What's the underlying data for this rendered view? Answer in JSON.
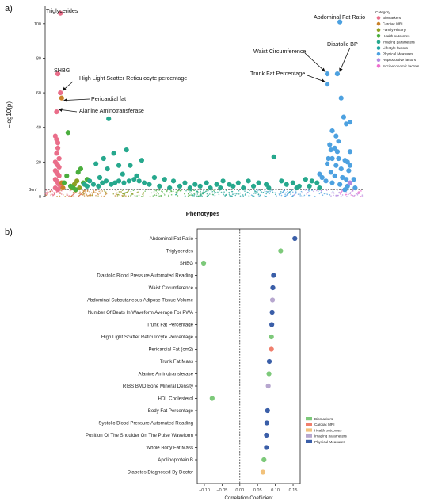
{
  "panels": {
    "a": "a)",
    "b": "b)"
  },
  "colors": {
    "Biomarkers": "#ea6e8a",
    "Cardiac MRI": "#c9822b",
    "Family History": "#8f9f23",
    "Health outcomes": "#4aae3d",
    "Imaging parameters": "#26a88d",
    "Lifestyle factors": "#1da3a0",
    "Physical Measures": "#4da1e0",
    "Reproductive factors": "#b38be0",
    "Socioeconomic factors": "#ee6fcf"
  },
  "chart_data": [
    {
      "type": "scatter",
      "title": "",
      "xlabel": "Phenotypes",
      "ylabel": "−log10(p)",
      "ylim": [
        0,
        110
      ],
      "yticks": [
        0,
        20,
        40,
        60,
        80,
        100
      ],
      "threshold_label": "Bonf",
      "threshold_value": 4,
      "legend": {
        "title": "Category",
        "items": [
          "Biomarkers",
          "Cardiac MRI",
          "Family History",
          "Health outcomes",
          "Imaging parameters",
          "Lifestyle factors",
          "Physical Measures",
          "Reproductive factors",
          "Socioeconomic factors"
        ],
        "placement": "top-right"
      },
      "annotations": [
        {
          "text": "Triglycerides",
          "x": 12,
          "y": 106
        },
        {
          "text": "SHBG",
          "x": 10,
          "y": 71
        },
        {
          "text": "High Light Scatter Reticulocyte percentage",
          "x": 12,
          "y": 60
        },
        {
          "text": "Pericardial fat",
          "x": 13,
          "y": 57
        },
        {
          "text": "Alanine Aminotransferase",
          "x": 9,
          "y": 49
        },
        {
          "text": "Abdominal Fat Ratio",
          "x": 232,
          "y": 101
        },
        {
          "text": "Waist Circumference",
          "x": 222,
          "y": 71
        },
        {
          "text": "Diastolic BP",
          "x": 230,
          "y": 71
        },
        {
          "text": "Trunk Fat Percentage",
          "x": 222,
          "y": 65
        }
      ],
      "series": [
        {
          "name": "Biomarkers",
          "points": [
            [
              12,
              106
            ],
            [
              10,
              71
            ],
            [
              12,
              60
            ],
            [
              9,
              49
            ],
            [
              8,
              35
            ],
            [
              9,
              33
            ],
            [
              10,
              31
            ],
            [
              10,
              28
            ],
            [
              9,
              25
            ],
            [
              11,
              22
            ],
            [
              8,
              20
            ],
            [
              9,
              19
            ],
            [
              10,
              18
            ],
            [
              11,
              17
            ],
            [
              8,
              15
            ],
            [
              9,
              14
            ],
            [
              10,
              13
            ],
            [
              11,
              12
            ],
            [
              8,
              10
            ],
            [
              9,
              9
            ],
            [
              10,
              8
            ],
            [
              11,
              7
            ],
            [
              12,
              6
            ],
            [
              8,
              5
            ],
            [
              10,
              4
            ]
          ]
        },
        {
          "name": "Cardiac MRI",
          "points": [
            [
              13,
              57
            ],
            [
              13,
              8
            ],
            [
              14,
              5
            ]
          ]
        },
        {
          "name": "Family History",
          "points": [
            [
              23,
              7
            ],
            [
              25,
              9
            ],
            [
              21,
              5
            ],
            [
              27,
              5
            ]
          ]
        },
        {
          "name": "Health outcomes",
          "points": [
            [
              18,
              37
            ],
            [
              17,
              12
            ],
            [
              15,
              8
            ],
            [
              26,
              14
            ],
            [
              28,
              16
            ],
            [
              20,
              6
            ],
            [
              30,
              8
            ],
            [
              22,
              5
            ],
            [
              33,
              10
            ],
            [
              24,
              4
            ]
          ]
        },
        {
          "name": "Imaging parameters",
          "points": [
            [
              50,
              45
            ],
            [
              64,
              27
            ],
            [
              54,
              25
            ],
            [
              46,
              22
            ],
            [
              76,
              21
            ],
            [
              40,
              19
            ],
            [
              58,
              18
            ],
            [
              67,
              18
            ],
            [
              49,
              16
            ],
            [
              61,
              13
            ],
            [
              72,
              12
            ],
            [
              43,
              11
            ],
            [
              86,
              11
            ],
            [
              94,
              10
            ],
            [
              101,
              9
            ],
            [
              110,
              8
            ],
            [
              118,
              7
            ],
            [
              127,
              8
            ],
            [
              135,
              7
            ],
            [
              140,
              9
            ],
            [
              145,
              7
            ],
            [
              152,
              8
            ],
            [
              160,
              9
            ],
            [
              168,
              8
            ],
            [
              174,
              7
            ],
            [
              180,
              23
            ],
            [
              186,
              9
            ],
            [
              190,
              7
            ],
            [
              195,
              8
            ],
            [
              200,
              6
            ],
            [
              205,
              10
            ],
            [
              210,
              9
            ],
            [
              214,
              8
            ],
            [
              216,
              5
            ],
            [
              208,
              6
            ],
            [
              198,
              5
            ],
            [
              176,
              5
            ],
            [
              164,
              6
            ],
            [
              156,
              5
            ],
            [
              148,
              6
            ],
            [
              138,
              5
            ],
            [
              130,
              5
            ],
            [
              122,
              6
            ],
            [
              114,
              5
            ],
            [
              106,
              6
            ],
            [
              98,
              5
            ],
            [
              90,
              6
            ],
            [
              82,
              7
            ],
            [
              78,
              8
            ],
            [
              74,
              9
            ],
            [
              70,
              10
            ],
            [
              66,
              9
            ],
            [
              62,
              8
            ],
            [
              58,
              9
            ],
            [
              55,
              8
            ],
            [
              52,
              7
            ],
            [
              48,
              9
            ],
            [
              45,
              8
            ],
            [
              42,
              6
            ],
            [
              38,
              7
            ],
            [
              35,
              9
            ],
            [
              33,
              6
            ],
            [
              31,
              7
            ]
          ]
        },
        {
          "name": "Physical Measures",
          "points": [
            [
              232,
              101
            ],
            [
              222,
              71
            ],
            [
              230,
              71
            ],
            [
              222,
              65
            ],
            [
              233,
              57
            ],
            [
              235,
              46
            ],
            [
              237,
              42
            ],
            [
              240,
              43
            ],
            [
              226,
              38
            ],
            [
              229,
              35
            ],
            [
              231,
              32
            ],
            [
              224,
              30
            ],
            [
              228,
              28
            ],
            [
              225,
              27
            ],
            [
              230,
              26
            ],
            [
              240,
              26
            ],
            [
              223,
              22
            ],
            [
              226,
              22
            ],
            [
              231,
              22
            ],
            [
              236,
              21
            ],
            [
              238,
              20
            ],
            [
              222,
              19
            ],
            [
              240,
              18
            ],
            [
              229,
              18
            ],
            [
              233,
              16
            ],
            [
              239,
              15
            ],
            [
              225,
              14
            ],
            [
              228,
              12
            ],
            [
              234,
              11
            ],
            [
              237,
              10
            ],
            [
              221,
              9
            ],
            [
              218,
              11
            ],
            [
              216,
              13
            ],
            [
              226,
              8
            ],
            [
              232,
              7
            ],
            [
              238,
              6
            ],
            [
              243,
              10
            ],
            [
              244,
              5
            ],
            [
              236,
              4
            ]
          ]
        },
        {
          "name": "Reproductive factors",
          "points": [
            [
              240,
              8
            ]
          ]
        }
      ]
    },
    {
      "type": "scatter",
      "xlabel": "Correlation Coefficient",
      "ylabel": "",
      "xlim": [
        -0.12,
        0.17
      ],
      "xticks": [
        -0.1,
        -0.05,
        0.0,
        0.05,
        0.1,
        0.15
      ],
      "xtick_labels": [
        "−0.10",
        "−0.05",
        "0.00",
        "0.05",
        "0.10",
        "0.15"
      ],
      "legend": {
        "items": [
          "Biomarkers",
          "Cardiac MRI",
          "Health outcomes",
          "Imaging parameters",
          "Physical Measures"
        ],
        "colors": [
          "#7dc97a",
          "#f07f6d",
          "#f2c27b",
          "#b7a7cf",
          "#3a5ea8"
        ],
        "placement": "bottom-right"
      },
      "categories": [
        "Abdominal Fat Ratio",
        "Triglycerides",
        "SHBG",
        "Diastolic Blood Pressure Automated Reading",
        "Waist Circumference",
        "Abdominal Subcutaneous Adipose Tissue Volume",
        "Number Of Beats In Waveform Average For PWA",
        "Trunk Fat Percentage",
        "High Light Scatter Reticulocyte Percentage",
        "Pericardial Fat (cm2)",
        "Trunk Fat Mass",
        "Alanine Aminotransferase",
        "RIBS BMD Bone Mineral Density",
        "HDL Cholesterol",
        "Body Fat Percentage",
        "Systolic Blood Pressure Automated Reading",
        "Position Of The Shoulder On The Pulse Waveform",
        "Whole Body Fat Mass",
        "Apolipoprotein B",
        "Diabetes Diagnosed By Doctor"
      ],
      "values": [
        0.155,
        0.115,
        -0.102,
        0.095,
        0.093,
        0.092,
        0.091,
        0.09,
        0.089,
        0.089,
        0.083,
        0.082,
        0.08,
        -0.078,
        0.078,
        0.076,
        0.075,
        0.075,
        0.068,
        0.065
      ],
      "groups": [
        "Physical Measures",
        "Biomarkers",
        "Biomarkers",
        "Physical Measures",
        "Physical Measures",
        "Imaging parameters",
        "Physical Measures",
        "Physical Measures",
        "Biomarkers",
        "Cardiac MRI",
        "Physical Measures",
        "Biomarkers",
        "Imaging parameters",
        "Biomarkers",
        "Physical Measures",
        "Physical Measures",
        "Physical Measures",
        "Physical Measures",
        "Biomarkers",
        "Health outcomes"
      ]
    }
  ]
}
